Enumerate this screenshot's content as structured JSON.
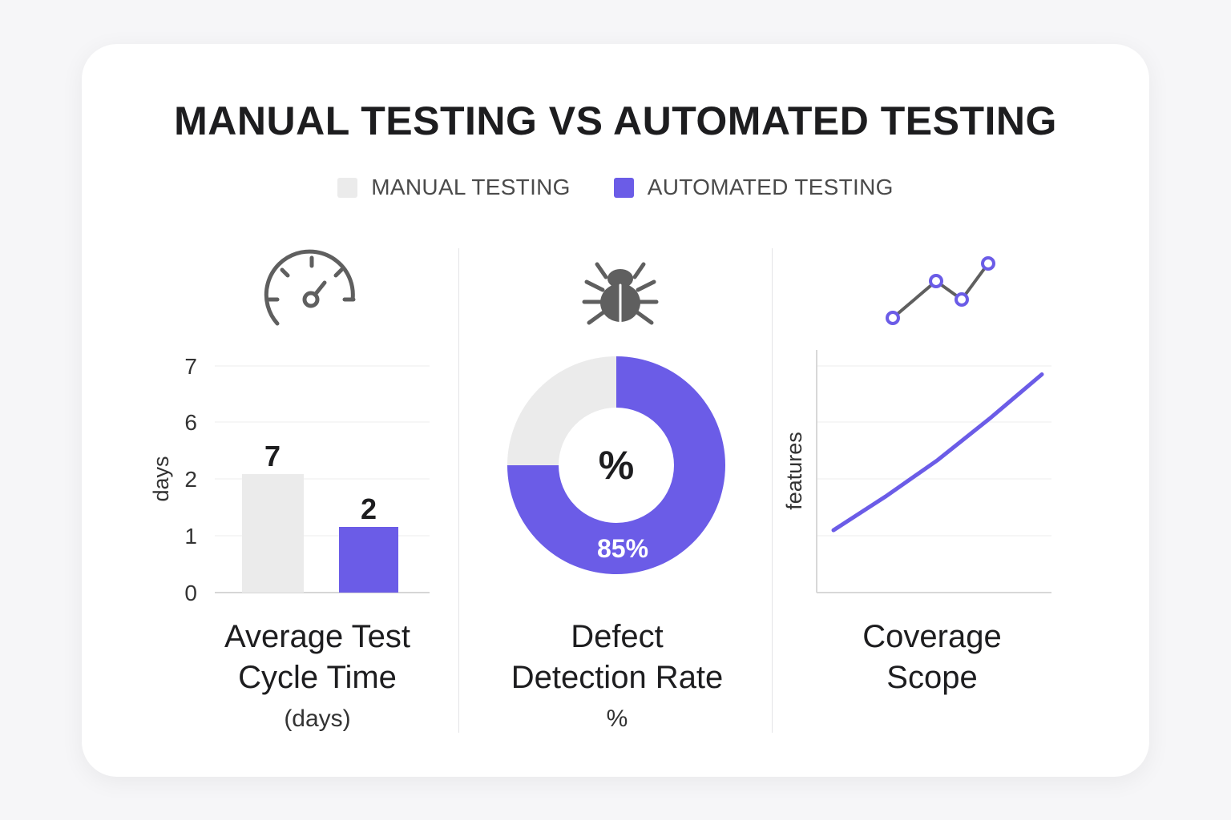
{
  "title": "MANUAL TESTING VS AUTOMATED TESTING",
  "colors": {
    "manual": "#ebebeb",
    "automated": "#6b5ce7",
    "icon": "#5f5f5f"
  },
  "legend": [
    {
      "label": "MANUAL TESTING",
      "color": "#ebebeb"
    },
    {
      "label": "AUTOMATED TESTING",
      "color": "#6b5ce7"
    }
  ],
  "icons": {
    "panel1": "speedometer-icon",
    "panel2": "bug-icon",
    "panel3": "trend-line-icon"
  },
  "chart_data": [
    {
      "type": "bar",
      "title_line1": "Average Test",
      "title_line2": "Cycle Time",
      "subtitle": "(days)",
      "ylabel": "days",
      "y_ticks": [
        "0",
        "1",
        "2",
        "6",
        "7"
      ],
      "categories": [
        "Manual Testing",
        "Automated Testing"
      ],
      "values": [
        7,
        2
      ],
      "data_labels": [
        "7",
        "2"
      ]
    },
    {
      "type": "pie",
      "title_line1": "Defect",
      "title_line2": "Detection Rate",
      "subtitle": "%",
      "center_label": "%",
      "slices": [
        {
          "label": "Manual Testing",
          "value": 15
        },
        {
          "label": "Automated Testing",
          "value": 85
        }
      ],
      "slice_label": "85%"
    },
    {
      "type": "line",
      "title_line1": "Coverage",
      "title_line2": "Scope",
      "ylabel": "features",
      "series": [
        {
          "values": [
            [
              0,
              1.2
            ],
            [
              1,
              1.85
            ],
            [
              2,
              2.55
            ],
            [
              3,
              3.35
            ],
            [
              4,
              4.2
            ]
          ]
        }
      ]
    }
  ]
}
